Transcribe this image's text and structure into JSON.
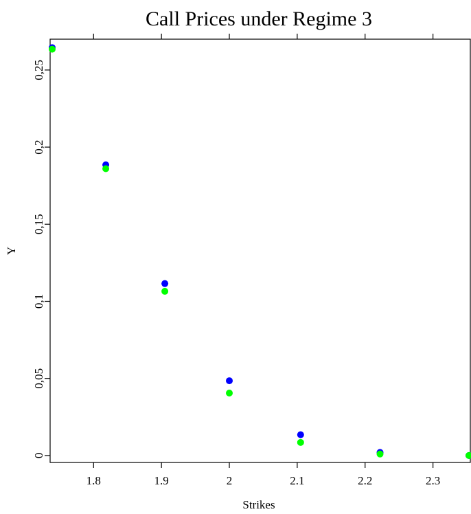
{
  "chart_data": {
    "type": "scatter",
    "title": "Call Prices under Regime 3",
    "xlabel": "Strikes",
    "ylabel": "Y",
    "xlim": [
      1.736,
      2.355
    ],
    "ylim": [
      -0.0045,
      0.27
    ],
    "grid": false,
    "x_ticks": [
      1.8,
      1.9,
      2.0,
      2.1,
      2.2,
      2.3
    ],
    "x_tick_labels": [
      "1.8",
      "1.9",
      "2",
      "2.1",
      "2.2",
      "2.3"
    ],
    "y_ticks": [
      0,
      0.05,
      0.1,
      0.15,
      0.2,
      0.25
    ],
    "y_tick_labels": [
      "0",
      "0,05",
      "0,1",
      "0,15",
      "0,2",
      "0,25"
    ],
    "series": [
      {
        "color": "#0000ff",
        "x": [
          1.739,
          1.818,
          1.905,
          2.0,
          2.105,
          2.222,
          2.353
        ],
        "y": [
          0.2645,
          0.1885,
          0.1115,
          0.0485,
          0.0135,
          0.002,
          0.0
        ]
      },
      {
        "color": "#00ff00",
        "x": [
          1.739,
          1.818,
          1.905,
          2.0,
          2.105,
          2.222,
          2.353
        ],
        "y": [
          0.2635,
          0.186,
          0.1065,
          0.0405,
          0.0085,
          0.001,
          0.0
        ]
      }
    ]
  }
}
